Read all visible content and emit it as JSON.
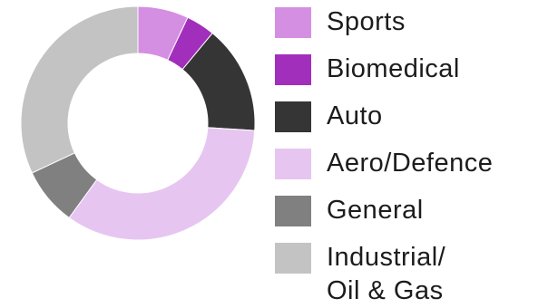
{
  "chart_data": {
    "type": "donut",
    "categories": [
      "Sports",
      "Biomedical",
      "Auto",
      "Aero/Defence",
      "General",
      "Industrial/\nOil & Gas"
    ],
    "values": [
      7,
      4,
      15,
      34,
      8,
      32
    ],
    "colors": [
      "#d58fe2",
      "#a22ebc",
      "#353535",
      "#e6c6f1",
      "#808080",
      "#c3c3c3"
    ],
    "legend_position": "right"
  }
}
